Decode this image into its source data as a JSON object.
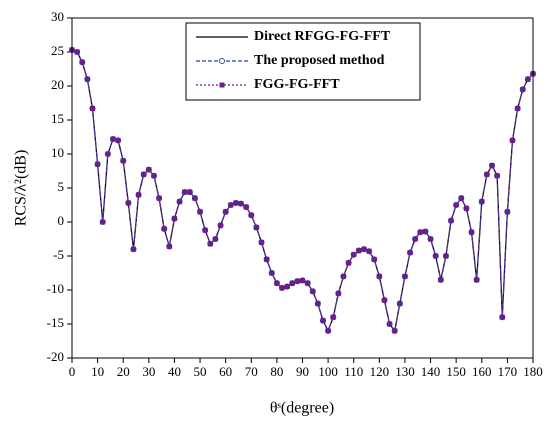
{
  "chart_data": {
    "type": "line",
    "xlabel": "θˢ(degree)",
    "ylabel": "RCS/λ²(dB)",
    "x": [
      0,
      2,
      4,
      6,
      8,
      10,
      12,
      14,
      16,
      18,
      20,
      22,
      24,
      26,
      28,
      30,
      32,
      34,
      36,
      38,
      40,
      42,
      44,
      46,
      48,
      50,
      52,
      54,
      56,
      58,
      60,
      62,
      64,
      66,
      68,
      70,
      72,
      74,
      76,
      78,
      80,
      82,
      84,
      86,
      88,
      90,
      92,
      94,
      96,
      98,
      100,
      102,
      104,
      106,
      108,
      110,
      112,
      114,
      116,
      118,
      120,
      122,
      124,
      126,
      128,
      130,
      132,
      134,
      136,
      138,
      140,
      142,
      144,
      146,
      148,
      150,
      152,
      154,
      156,
      158,
      160,
      162,
      164,
      166,
      168,
      170,
      172,
      174,
      176,
      178,
      180
    ],
    "series": [
      {
        "name": "Direct RFGG-FG-FFT",
        "color": "#000000",
        "dash": "solid",
        "marker": "none",
        "values": [
          25.3,
          25,
          23.5,
          21,
          16.7,
          8.5,
          0,
          10,
          12.2,
          12,
          9,
          2.8,
          -4,
          4,
          7,
          7.7,
          6.8,
          3.5,
          -1,
          -3.6,
          0.5,
          3,
          4.4,
          4.4,
          3.5,
          1.5,
          -1.2,
          -3.2,
          -2.5,
          -0.5,
          1.5,
          2.5,
          2.8,
          2.7,
          2.2,
          1,
          -0.8,
          -3,
          -5.5,
          -7.5,
          -9,
          -9.7,
          -9.5,
          -9,
          -8.7,
          -8.6,
          -9,
          -10.2,
          -12,
          -14.5,
          -16,
          -14,
          -10.5,
          -8,
          -6,
          -4.8,
          -4.2,
          -4,
          -4.3,
          -5.5,
          -8,
          -11.5,
          -15,
          -16,
          -12,
          -8,
          -4.5,
          -2.5,
          -1.5,
          -1.4,
          -2.5,
          -5,
          -8.5,
          -5,
          0.2,
          2.5,
          3.5,
          2,
          -1.5,
          -8.5,
          3,
          7,
          8.3,
          6.8,
          -14,
          1.5,
          12,
          16.7,
          19.5,
          21,
          21.8
        ]
      },
      {
        "name": "The proposed method",
        "color": "#3344aa",
        "dash": "dashed",
        "marker": "circle",
        "values": [
          25.3,
          25,
          23.5,
          21,
          16.7,
          8.5,
          0,
          10,
          12.2,
          12,
          9,
          2.8,
          -4,
          4,
          7,
          7.7,
          6.8,
          3.5,
          -1,
          -3.6,
          0.5,
          3,
          4.4,
          4.4,
          3.5,
          1.5,
          -1.2,
          -3.2,
          -2.5,
          -0.5,
          1.5,
          2.5,
          2.8,
          2.7,
          2.2,
          1,
          -0.8,
          -3,
          -5.5,
          -7.5,
          -9,
          -9.7,
          -9.5,
          -9,
          -8.7,
          -8.6,
          -9,
          -10.2,
          -12,
          -14.5,
          -16,
          -14,
          -10.5,
          -8,
          -6,
          -4.8,
          -4.2,
          -4,
          -4.3,
          -5.5,
          -8,
          -11.5,
          -15,
          -16,
          -12,
          -8,
          -4.5,
          -2.5,
          -1.5,
          -1.4,
          -2.5,
          -5,
          -8.5,
          -5,
          0.2,
          2.5,
          3.5,
          2,
          -1.5,
          -8.5,
          3,
          7,
          8.3,
          6.8,
          -14,
          1.5,
          12,
          16.7,
          19.5,
          21,
          21.8
        ]
      },
      {
        "name": "FGG-FG-FFT",
        "color": "#6b1f8a",
        "dash": "dotted",
        "marker": "square",
        "values": [
          25.3,
          25,
          23.5,
          21,
          16.7,
          8.5,
          0,
          10,
          12.2,
          12,
          9,
          2.8,
          -4,
          4,
          7,
          7.7,
          6.8,
          3.5,
          -1,
          -3.6,
          0.5,
          3,
          4.4,
          4.4,
          3.5,
          1.5,
          -1.2,
          -3.2,
          -2.5,
          -0.5,
          1.5,
          2.5,
          2.8,
          2.7,
          2.2,
          1,
          -0.8,
          -3,
          -5.5,
          -7.5,
          -9,
          -9.7,
          -9.5,
          -9,
          -8.7,
          -8.6,
          -9,
          -10.2,
          -12,
          -14.5,
          -16,
          -14,
          -10.5,
          -8,
          -6,
          -4.8,
          -4.2,
          -4,
          -4.3,
          -5.5,
          -8,
          -11.5,
          -15,
          -16,
          -12,
          -8,
          -4.5,
          -2.5,
          -1.5,
          -1.4,
          -2.5,
          -5,
          -8.5,
          -5,
          0.2,
          2.5,
          3.5,
          2,
          -1.5,
          -8.5,
          3,
          7,
          8.3,
          6.8,
          -14,
          1.5,
          12,
          16.7,
          19.5,
          21,
          21.8
        ]
      }
    ],
    "xlim": [
      0,
      180
    ],
    "xticks": [
      0,
      10,
      20,
      30,
      40,
      50,
      60,
      70,
      80,
      90,
      100,
      110,
      120,
      130,
      140,
      150,
      160,
      170,
      180
    ],
    "ylim": [
      -20,
      30
    ],
    "yticks": [
      -20,
      -15,
      -10,
      -5,
      0,
      5,
      10,
      15,
      20,
      25,
      30
    ],
    "grid": false,
    "legend": "upper center"
  }
}
